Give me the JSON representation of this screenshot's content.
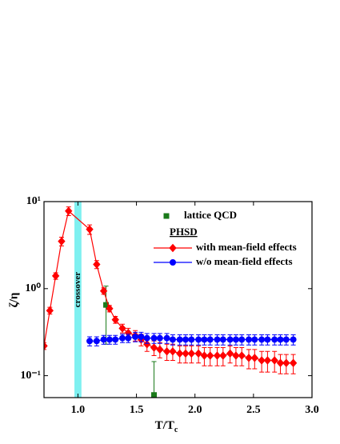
{
  "chart_data": {
    "type": "scatter",
    "x_label": {
      "main": "T/T",
      "sub": "c"
    },
    "y_label": "ζ/η",
    "xlim": [
      0.71,
      3.0
    ],
    "xticks": [
      {
        "value": 1.0,
        "label": "1.0"
      },
      1.5,
      {
        "value": 2.0,
        "label": "2.0"
      },
      2.5,
      {
        "value": 3.0,
        "label": "3.0"
      }
    ],
    "ylim": [
      0.056,
      10
    ],
    "yticks": [
      {
        "value": 10,
        "label": "10¹"
      },
      {
        "value": 1,
        "label": "10⁰"
      },
      {
        "value": 0.1,
        "label": "10⁻¹"
      }
    ],
    "log_y": true,
    "band": {
      "range": [
        0.97,
        1.03
      ],
      "label": "crossover",
      "color": "#7ef0f0"
    },
    "legend_heading": "PHSD",
    "series": [
      {
        "name": "lattice QCD",
        "color": "#1a7a1a",
        "marker": "square",
        "line": false,
        "x": [
          1.24,
          1.65
        ],
        "values": [
          0.65,
          0.06
        ],
        "errors": [
          0.42,
          0.085
        ]
      },
      {
        "name": "with mean-field effects",
        "color": "#ff0000",
        "marker": "diamond",
        "line": true,
        "x": [
          0.71,
          0.76,
          0.81,
          0.86,
          0.92,
          1.1,
          1.16,
          1.22,
          1.27,
          1.32,
          1.38,
          1.43,
          1.49,
          1.54,
          1.59,
          1.65,
          1.7,
          1.76,
          1.81,
          1.87,
          1.92,
          1.97,
          2.03,
          2.08,
          2.13,
          2.19,
          2.24,
          2.3,
          2.35,
          2.4,
          2.46,
          2.51,
          2.57,
          2.62,
          2.68,
          2.73,
          2.78,
          2.84
        ],
        "values": [
          0.22,
          0.56,
          1.4,
          3.5,
          7.8,
          4.8,
          1.9,
          0.94,
          0.59,
          0.44,
          0.35,
          0.31,
          0.29,
          0.26,
          0.23,
          0.21,
          0.2,
          0.19,
          0.19,
          0.18,
          0.18,
          0.18,
          0.18,
          0.17,
          0.17,
          0.17,
          0.17,
          0.18,
          0.17,
          0.17,
          0.16,
          0.16,
          0.15,
          0.15,
          0.15,
          0.14,
          0.14,
          0.14
        ],
        "errors": [
          0.02,
          0.05,
          0.12,
          0.4,
          0.9,
          0.6,
          0.2,
          0.08,
          0.05,
          0.04,
          0.04,
          0.04,
          0.04,
          0.04,
          0.04,
          0.04,
          0.04,
          0.04,
          0.04,
          0.04,
          0.04,
          0.04,
          0.04,
          0.04,
          0.04,
          0.04,
          0.04,
          0.04,
          0.04,
          0.04,
          0.04,
          0.04,
          0.04,
          0.04,
          0.04,
          0.035,
          0.035,
          0.035
        ]
      },
      {
        "name": "w/o mean-field effects",
        "color": "#0000ff",
        "marker": "circle",
        "line": true,
        "x": [
          1.1,
          1.16,
          1.22,
          1.27,
          1.32,
          1.38,
          1.43,
          1.49,
          1.54,
          1.59,
          1.65,
          1.7,
          1.76,
          1.81,
          1.87,
          1.92,
          1.97,
          2.03,
          2.08,
          2.13,
          2.19,
          2.24,
          2.3,
          2.35,
          2.4,
          2.46,
          2.51,
          2.57,
          2.62,
          2.68,
          2.73,
          2.78,
          2.84
        ],
        "values": [
          0.25,
          0.25,
          0.26,
          0.26,
          0.26,
          0.27,
          0.27,
          0.28,
          0.28,
          0.27,
          0.27,
          0.27,
          0.27,
          0.26,
          0.26,
          0.26,
          0.26,
          0.26,
          0.26,
          0.26,
          0.26,
          0.26,
          0.26,
          0.26,
          0.26,
          0.26,
          0.26,
          0.26,
          0.26,
          0.26,
          0.26,
          0.26,
          0.26
        ],
        "errors": [
          0.03,
          0.03,
          0.03,
          0.03,
          0.03,
          0.03,
          0.03,
          0.035,
          0.035,
          0.035,
          0.035,
          0.035,
          0.035,
          0.035,
          0.035,
          0.035,
          0.035,
          0.035,
          0.035,
          0.035,
          0.035,
          0.035,
          0.035,
          0.035,
          0.035,
          0.035,
          0.035,
          0.035,
          0.035,
          0.035,
          0.035,
          0.035,
          0.035
        ]
      }
    ]
  }
}
